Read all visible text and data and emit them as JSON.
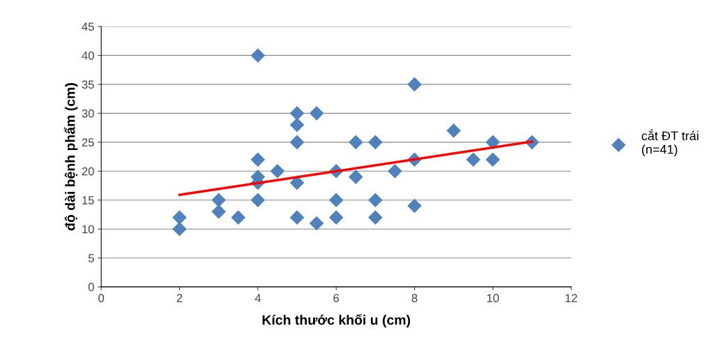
{
  "chart_data": {
    "type": "scatter",
    "xlabel": "Kích thước khối u (cm)",
    "ylabel": "độ dài bệnh phẩm (cm)",
    "xlim": [
      0,
      12
    ],
    "xticks": [
      0,
      2,
      4,
      6,
      8,
      10,
      12
    ],
    "ylim": [
      0,
      45
    ],
    "yticks": [
      0,
      5,
      10,
      15,
      20,
      25,
      30,
      35,
      40,
      45
    ],
    "grid": "y",
    "legend": "right",
    "marker": "diamond",
    "series": [
      {
        "name": "cắt ĐT trái\n(n=41)",
        "color": "#4f81bd",
        "x": [
          2,
          2,
          3,
          3,
          3.5,
          4,
          4,
          4,
          4,
          4,
          4.5,
          5,
          5,
          5,
          5,
          5,
          5.5,
          5.5,
          6,
          6,
          6,
          6.5,
          6.5,
          7,
          7,
          7,
          7.5,
          8,
          8,
          8,
          9,
          9.5,
          10,
          10,
          11
        ],
        "values": [
          12,
          10,
          15,
          13,
          12,
          40,
          22,
          19,
          18,
          15,
          20,
          30,
          28,
          25,
          18,
          12,
          30,
          11,
          20,
          15,
          12,
          25,
          19,
          25,
          15,
          12,
          20,
          35,
          22,
          14,
          27,
          22,
          25,
          22,
          25
        ]
      },
      {
        "type": "line",
        "marker": "none",
        "color": "#ff0000",
        "x": [
          2,
          11
        ],
        "values": [
          15.9,
          25.1
        ]
      }
    ]
  }
}
